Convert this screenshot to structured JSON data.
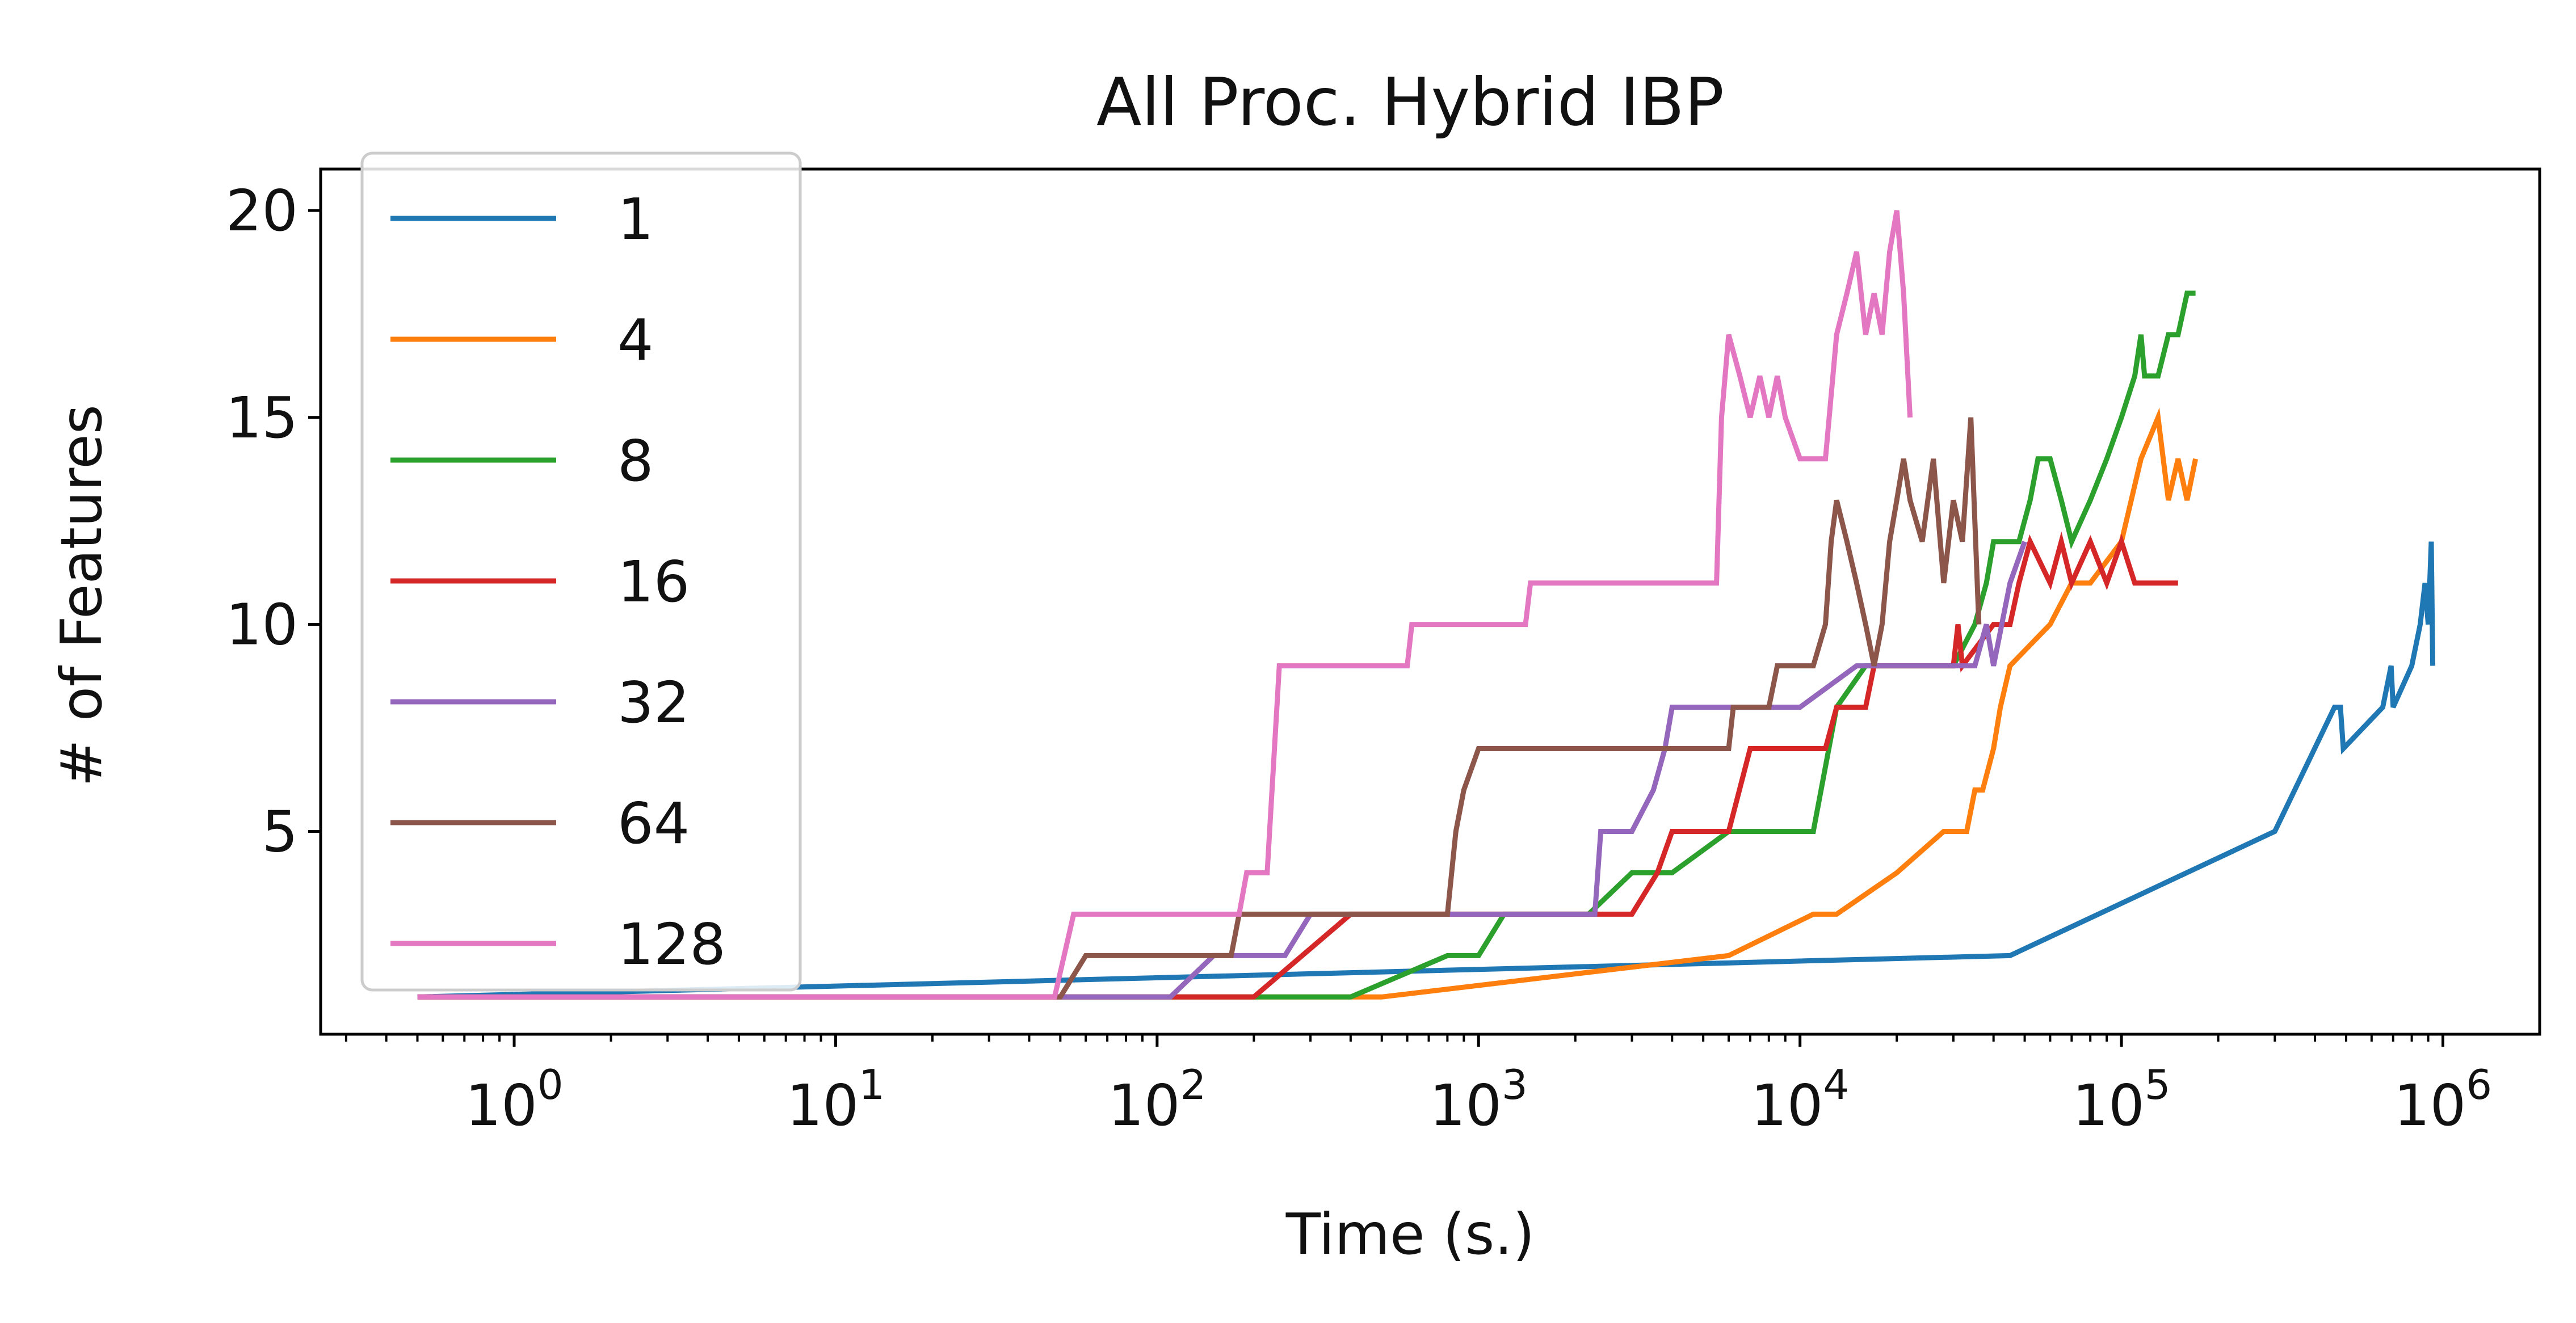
{
  "chart_data": {
    "type": "line",
    "title": "All Proc. Hybrid IBP",
    "xlabel": "Time (s.)",
    "ylabel": "# of Features",
    "x_scale": "log",
    "xlim": [
      0.25,
      2000000
    ],
    "ylim": [
      0.1,
      21
    ],
    "x_major_ticks": [
      1,
      10,
      100,
      1000,
      10000,
      100000,
      1000000
    ],
    "x_tick_labels": [
      {
        "base": "10",
        "exp": "0"
      },
      {
        "base": "10",
        "exp": "1"
      },
      {
        "base": "10",
        "exp": "2"
      },
      {
        "base": "10",
        "exp": "3"
      },
      {
        "base": "10",
        "exp": "4"
      },
      {
        "base": "10",
        "exp": "5"
      },
      {
        "base": "10",
        "exp": "6"
      }
    ],
    "y_ticks": [
      5,
      10,
      15,
      20
    ],
    "y_tick_labels": [
      "5",
      "10",
      "15",
      "20"
    ],
    "grid": false,
    "legend_position": "upper-left",
    "series": [
      {
        "name": "1",
        "color": "#1f77b4",
        "points": [
          [
            0.5,
            1
          ],
          [
            45000,
            2
          ],
          [
            300000,
            5
          ],
          [
            460000,
            8
          ],
          [
            480000,
            8
          ],
          [
            490000,
            7
          ],
          [
            650000,
            8
          ],
          [
            690000,
            9
          ],
          [
            700000,
            8
          ],
          [
            800000,
            9
          ],
          [
            850000,
            10
          ],
          [
            880000,
            11
          ],
          [
            900000,
            10
          ],
          [
            920000,
            12
          ],
          [
            930000,
            9
          ]
        ]
      },
      {
        "name": "4",
        "color": "#ff7f0e",
        "points": [
          [
            0.5,
            1
          ],
          [
            500,
            1
          ],
          [
            6000,
            2
          ],
          [
            11000,
            3
          ],
          [
            13000,
            3
          ],
          [
            20000,
            4
          ],
          [
            28000,
            5
          ],
          [
            33000,
            5
          ],
          [
            35000,
            6
          ],
          [
            37000,
            6
          ],
          [
            40000,
            7
          ],
          [
            42000,
            8
          ],
          [
            45000,
            9
          ],
          [
            60000,
            10
          ],
          [
            70000,
            11
          ],
          [
            80000,
            11
          ],
          [
            100000,
            12
          ],
          [
            115000,
            14
          ],
          [
            130000,
            15
          ],
          [
            140000,
            13
          ],
          [
            150000,
            14
          ],
          [
            160000,
            13
          ],
          [
            170000,
            14
          ]
        ]
      },
      {
        "name": "8",
        "color": "#2ca02c",
        "points": [
          [
            0.5,
            1
          ],
          [
            400,
            1
          ],
          [
            800,
            2
          ],
          [
            1000,
            2
          ],
          [
            1200,
            3
          ],
          [
            2200,
            3
          ],
          [
            3000,
            4
          ],
          [
            4000,
            4
          ],
          [
            6000,
            5
          ],
          [
            11000,
            5
          ],
          [
            13000,
            8
          ],
          [
            16000,
            9
          ],
          [
            30000,
            9
          ],
          [
            35000,
            10
          ],
          [
            38000,
            11
          ],
          [
            40000,
            12
          ],
          [
            48000,
            12
          ],
          [
            52000,
            13
          ],
          [
            55000,
            14
          ],
          [
            60000,
            14
          ],
          [
            65000,
            13
          ],
          [
            70000,
            12
          ],
          [
            80000,
            13
          ],
          [
            90000,
            14
          ],
          [
            100000,
            15
          ],
          [
            110000,
            16
          ],
          [
            115000,
            17
          ],
          [
            118000,
            16
          ],
          [
            130000,
            16
          ],
          [
            140000,
            17
          ],
          [
            150000,
            17
          ],
          [
            160000,
            18
          ],
          [
            170000,
            18
          ]
        ]
      },
      {
        "name": "16",
        "color": "#d62728",
        "points": [
          [
            0.5,
            1
          ],
          [
            200,
            1
          ],
          [
            400,
            3
          ],
          [
            2000,
            3
          ],
          [
            3000,
            3
          ],
          [
            3600,
            4
          ],
          [
            4000,
            5
          ],
          [
            6000,
            5
          ],
          [
            7000,
            7
          ],
          [
            12000,
            7
          ],
          [
            13000,
            8
          ],
          [
            16000,
            8
          ],
          [
            17000,
            9
          ],
          [
            30000,
            9
          ],
          [
            31000,
            10
          ],
          [
            32000,
            9
          ],
          [
            40000,
            10
          ],
          [
            45000,
            10
          ],
          [
            48000,
            11
          ],
          [
            52000,
            12
          ],
          [
            60000,
            11
          ],
          [
            65000,
            12
          ],
          [
            70000,
            11
          ],
          [
            80000,
            12
          ],
          [
            90000,
            11
          ],
          [
            100000,
            12
          ],
          [
            110000,
            11
          ],
          [
            150000,
            11
          ]
        ]
      },
      {
        "name": "32",
        "color": "#9467bd",
        "points": [
          [
            0.5,
            1
          ],
          [
            110,
            1
          ],
          [
            150,
            2
          ],
          [
            250,
            2
          ],
          [
            300,
            3
          ],
          [
            2300,
            3
          ],
          [
            2400,
            5
          ],
          [
            3000,
            5
          ],
          [
            3500,
            6
          ],
          [
            3800,
            7
          ],
          [
            4000,
            8
          ],
          [
            10000,
            8
          ],
          [
            15000,
            9
          ],
          [
            35000,
            9
          ],
          [
            38000,
            10
          ],
          [
            40000,
            9
          ],
          [
            45000,
            11
          ],
          [
            50000,
            12
          ]
        ]
      },
      {
        "name": "64",
        "color": "#8c564b",
        "points": [
          [
            0.5,
            1
          ],
          [
            50,
            1
          ],
          [
            60,
            2
          ],
          [
            170,
            2
          ],
          [
            180,
            3
          ],
          [
            800,
            3
          ],
          [
            850,
            5
          ],
          [
            900,
            6
          ],
          [
            1000,
            7
          ],
          [
            6000,
            7
          ],
          [
            6200,
            8
          ],
          [
            8000,
            8
          ],
          [
            8500,
            9
          ],
          [
            11000,
            9
          ],
          [
            12000,
            10
          ],
          [
            12500,
            12
          ],
          [
            13000,
            13
          ],
          [
            14000,
            12
          ],
          [
            15000,
            11
          ],
          [
            16000,
            10
          ],
          [
            17000,
            9
          ],
          [
            18000,
            10
          ],
          [
            19000,
            12
          ],
          [
            20000,
            13
          ],
          [
            21000,
            14
          ],
          [
            22000,
            13
          ],
          [
            24000,
            12
          ],
          [
            26000,
            14
          ],
          [
            28000,
            11
          ],
          [
            30000,
            13
          ],
          [
            32000,
            12
          ],
          [
            34000,
            15
          ],
          [
            36000,
            10
          ]
        ]
      },
      {
        "name": "128",
        "color": "#e377c2",
        "points": [
          [
            0.5,
            1
          ],
          [
            48,
            1
          ],
          [
            55,
            3
          ],
          [
            180,
            3
          ],
          [
            190,
            4
          ],
          [
            220,
            4
          ],
          [
            240,
            9
          ],
          [
            600,
            9
          ],
          [
            620,
            10
          ],
          [
            1400,
            10
          ],
          [
            1450,
            11
          ],
          [
            5500,
            11
          ],
          [
            5700,
            15
          ],
          [
            6000,
            17
          ],
          [
            6500,
            16
          ],
          [
            7000,
            15
          ],
          [
            7500,
            16
          ],
          [
            8000,
            15
          ],
          [
            8500,
            16
          ],
          [
            9000,
            15
          ],
          [
            10000,
            14
          ],
          [
            12000,
            14
          ],
          [
            13000,
            17
          ],
          [
            14000,
            18
          ],
          [
            15000,
            19
          ],
          [
            16000,
            17
          ],
          [
            17000,
            18
          ],
          [
            18000,
            17
          ],
          [
            19000,
            19
          ],
          [
            20000,
            20
          ],
          [
            21000,
            18
          ],
          [
            22000,
            15
          ]
        ]
      }
    ]
  }
}
